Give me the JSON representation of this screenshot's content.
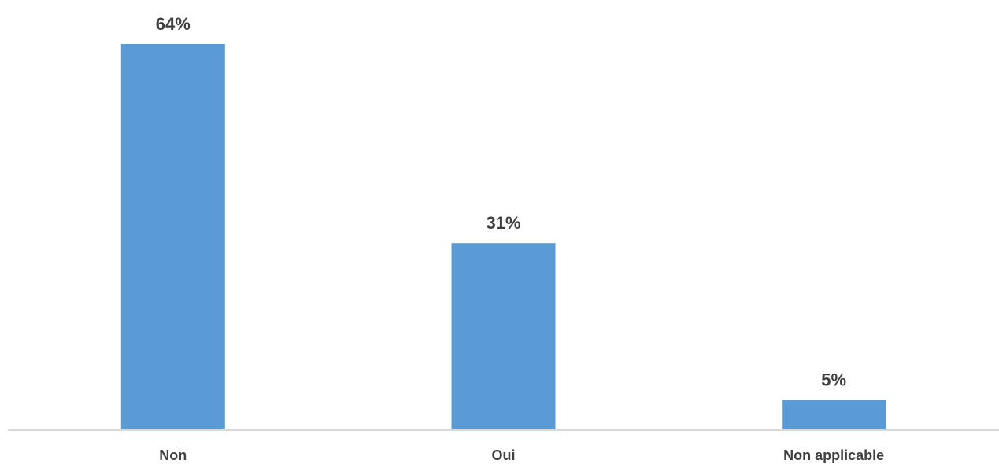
{
  "chart_data": {
    "type": "bar",
    "categories": [
      "Non",
      "Oui",
      "Non applicable"
    ],
    "values": [
      64,
      31,
      5
    ],
    "data_labels": [
      "64%",
      "31%",
      "5%"
    ],
    "title": "",
    "xlabel": "",
    "ylabel": "",
    "ylim": [
      0,
      64
    ],
    "grid": false,
    "legend": "none",
    "bar_color": "#5B9BD5",
    "axis_color": "#D9D9D9",
    "label_color": "#404040"
  }
}
